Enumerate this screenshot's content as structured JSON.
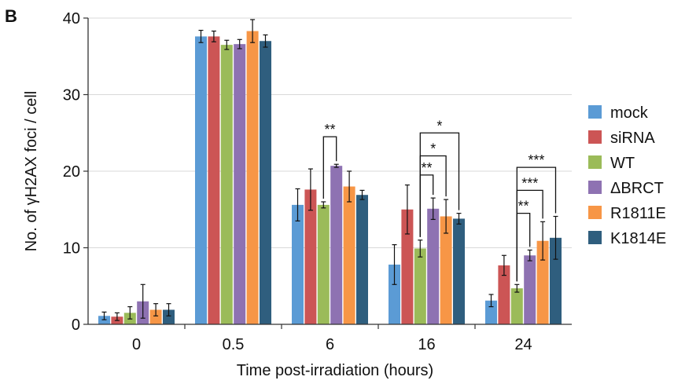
{
  "panel_label": "B",
  "chart_data": {
    "type": "bar",
    "xlabel": "Time post-irradiation (hours)",
    "ylabel": "No. of γH2AX foci / cell",
    "ylim": [
      0,
      40
    ],
    "yticks": [
      "0",
      "10",
      "20",
      "30",
      "40"
    ],
    "grid": true,
    "legend": "right",
    "categories": [
      "0",
      "0.5",
      "6",
      "16",
      "24"
    ],
    "series": [
      {
        "name": "mock",
        "color": "#5B9BD5",
        "values": [
          1.1,
          37.6,
          15.6,
          7.8,
          3.1
        ],
        "errors": [
          0.5,
          0.8,
          2.1,
          2.6,
          0.8
        ]
      },
      {
        "name": "siRNA",
        "color": "#CC5555",
        "values": [
          1.0,
          37.6,
          17.6,
          15.0,
          7.7
        ],
        "errors": [
          0.5,
          0.7,
          2.7,
          3.2,
          1.3
        ]
      },
      {
        "name": "WT",
        "color": "#9BBB59",
        "values": [
          1.5,
          36.5,
          15.6,
          9.9,
          4.7
        ],
        "errors": [
          0.8,
          0.6,
          0.4,
          1.1,
          0.5
        ]
      },
      {
        "name": "ΔBRCT",
        "color": "#8E72B2",
        "values": [
          3.0,
          36.6,
          20.7,
          15.1,
          9.0
        ],
        "errors": [
          2.2,
          0.6,
          0.2,
          1.4,
          0.7
        ]
      },
      {
        "name": "R1811E",
        "color": "#F79646",
        "values": [
          1.9,
          38.3,
          18.0,
          14.1,
          10.9
        ],
        "errors": [
          0.8,
          1.5,
          2.0,
          2.2,
          2.5
        ]
      },
      {
        "name": "K1814E",
        "color": "#2F5E7E",
        "values": [
          1.9,
          37.0,
          16.9,
          13.8,
          11.3
        ],
        "errors": [
          0.8,
          0.8,
          0.6,
          0.7,
          2.8
        ]
      }
    ],
    "annotations": [
      {
        "category": "6",
        "from": "WT",
        "to": "ΔBRCT",
        "label": "**",
        "level": 24.5
      },
      {
        "category": "16",
        "from": "WT",
        "to": "ΔBRCT",
        "label": "**",
        "level": 19.5
      },
      {
        "category": "16",
        "from": "WT",
        "to": "R1811E",
        "label": "*",
        "level": 22.0
      },
      {
        "category": "16",
        "from": "WT",
        "to": "K1814E",
        "label": "*",
        "level": 25.0
      },
      {
        "category": "24",
        "from": "WT",
        "to": "ΔBRCT",
        "label": "**",
        "level": 14.5
      },
      {
        "category": "24",
        "from": "WT",
        "to": "R1811E",
        "label": "***",
        "level": 17.5
      },
      {
        "category": "24",
        "from": "WT",
        "to": "K1814E",
        "label": "***",
        "level": 20.5
      }
    ]
  }
}
